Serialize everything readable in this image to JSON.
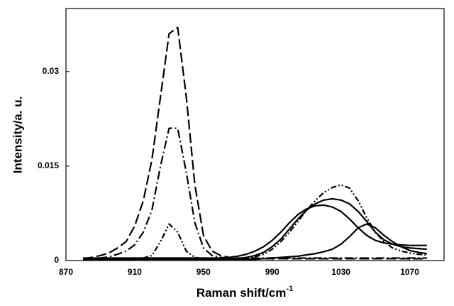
{
  "chart_data": {
    "type": "line",
    "x_label": "Raman shift/cm",
    "x_label_superscript": "-1",
    "y_label": "Intensity/a. u.",
    "xlim": [
      870,
      1090
    ],
    "xticks": [
      870,
      910,
      950,
      990,
      1030,
      1070
    ],
    "ylim": [
      0,
      0.04
    ],
    "yticks": [
      0,
      0.015,
      0.03
    ],
    "x": [
      880,
      885,
      890,
      895,
      900,
      905,
      910,
      915,
      920,
      925,
      930,
      935,
      940,
      945,
      950,
      955,
      960,
      965,
      970,
      975,
      980,
      985,
      990,
      995,
      1000,
      1005,
      1010,
      1015,
      1020,
      1025,
      1030,
      1035,
      1040,
      1045,
      1050,
      1055,
      1060,
      1065,
      1070,
      1075,
      1080
    ],
    "series": [
      {
        "color": "#000000",
        "linestyle": "long-dash",
        "values": [
          0.0003,
          0.0005,
          0.0008,
          0.0012,
          0.002,
          0.003,
          0.0055,
          0.0095,
          0.016,
          0.026,
          0.036,
          0.037,
          0.026,
          0.012,
          0.004,
          0.0015,
          0.0008,
          0.0005,
          0.0004,
          0.0003,
          0.0003,
          0.0003,
          0.0003,
          0.0003,
          0.0003,
          0.0003,
          0.0003,
          0.0003,
          0.0003,
          0.0003,
          0.0003,
          0.0003,
          0.0003,
          0.0003,
          0.0003,
          0.0003,
          0.0003,
          0.0003,
          0.0003,
          0.0003,
          0.0003
        ]
      },
      {
        "color": "#000000",
        "linestyle": "dash-dot",
        "values": [
          0.0002,
          0.0003,
          0.0004,
          0.0006,
          0.001,
          0.0015,
          0.0025,
          0.0045,
          0.008,
          0.015,
          0.021,
          0.021,
          0.014,
          0.006,
          0.002,
          0.0008,
          0.0005,
          0.0004,
          0.0004,
          0.0004,
          0.0004,
          0.0004,
          0.0004,
          0.0004,
          0.0004,
          0.0004,
          0.0004,
          0.0004,
          0.0004,
          0.0004,
          0.0004,
          0.0004,
          0.0004,
          0.0004,
          0.0004,
          0.0004,
          0.0004,
          0.0004,
          0.0004,
          0.0004,
          0.0004
        ]
      },
      {
        "color": "#000000",
        "linestyle": "dash-dot-dot",
        "values": [
          0.0002,
          0.0002,
          0.0002,
          0.0002,
          0.0002,
          0.0002,
          0.0002,
          0.0004,
          0.0008,
          0.003,
          0.0058,
          0.0045,
          0.0015,
          0.0005,
          0.0003,
          0.0003,
          0.0003,
          0.0003,
          0.0003,
          0.0004,
          0.0006,
          0.001,
          0.0018,
          0.003,
          0.0045,
          0.0062,
          0.008,
          0.0095,
          0.0108,
          0.0116,
          0.012,
          0.0115,
          0.0095,
          0.0068,
          0.0045,
          0.003,
          0.002,
          0.0015,
          0.0012,
          0.001,
          0.0009
        ]
      },
      {
        "color": "#000000",
        "linestyle": "solid",
        "values": [
          0.0003,
          0.0003,
          0.0003,
          0.0003,
          0.0003,
          0.0003,
          0.0003,
          0.0003,
          0.0003,
          0.0003,
          0.0003,
          0.0003,
          0.0003,
          0.0003,
          0.0003,
          0.0003,
          0.0003,
          0.0003,
          0.0003,
          0.0005,
          0.0008,
          0.0013,
          0.0022,
          0.0034,
          0.005,
          0.0066,
          0.008,
          0.009,
          0.0096,
          0.0098,
          0.0096,
          0.009,
          0.0078,
          0.0062,
          0.0045,
          0.0033,
          0.0026,
          0.0022,
          0.002,
          0.0019,
          0.0018
        ]
      },
      {
        "color": "#000000",
        "linestyle": "solid",
        "values": [
          0.0004,
          0.0004,
          0.0004,
          0.0004,
          0.0004,
          0.0004,
          0.0004,
          0.0004,
          0.0004,
          0.0004,
          0.0004,
          0.0004,
          0.0004,
          0.0004,
          0.0004,
          0.0004,
          0.0004,
          0.0005,
          0.0007,
          0.001,
          0.0015,
          0.0022,
          0.0032,
          0.0045,
          0.006,
          0.0073,
          0.0082,
          0.0087,
          0.0088,
          0.0085,
          0.0078,
          0.0066,
          0.0052,
          0.004,
          0.0032,
          0.0028,
          0.0026,
          0.0025,
          0.0024,
          0.0024,
          0.0024
        ]
      },
      {
        "color": "#000000",
        "linestyle": "solid",
        "values": [
          0.0002,
          0.0002,
          0.0002,
          0.0002,
          0.0002,
          0.0002,
          0.0002,
          0.0002,
          0.0002,
          0.0002,
          0.0002,
          0.0002,
          0.0002,
          0.0002,
          0.0002,
          0.0002,
          0.0002,
          0.0002,
          0.0002,
          0.0002,
          0.0002,
          0.0003,
          0.0004,
          0.0005,
          0.0006,
          0.0007,
          0.0009,
          0.0011,
          0.0014,
          0.0018,
          0.0026,
          0.0038,
          0.0052,
          0.0058,
          0.0052,
          0.004,
          0.003,
          0.0022,
          0.0016,
          0.0013,
          0.0011
        ]
      }
    ]
  }
}
